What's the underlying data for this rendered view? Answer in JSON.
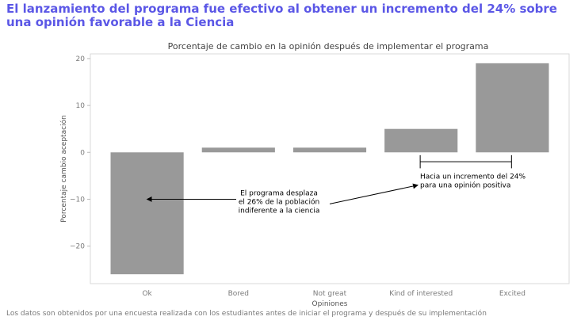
{
  "headline_line1": "El lanzamiento del programa fue efectivo al obtener un incremento del 24% sobre",
  "headline_line2": "una opinión favorable a la Ciencia",
  "footer": "Los datos son obtenidos por una encuesta realizada con los estudiantes antes de iniciar el programa y después de su implementación",
  "colors": {
    "headline": "#5b57e6",
    "bar": "#999999",
    "axis": "#d9d9d9"
  },
  "chart_data": {
    "type": "bar",
    "title": "Porcentaje de cambio en la opinión después de implementar el programa",
    "xlabel": "Opiniones",
    "ylabel": "Porcentaje cambio aceptación",
    "categories": [
      "Ok",
      "Bored",
      "Not great",
      "Kind of interested",
      "Excited"
    ],
    "values": [
      -26,
      1,
      1,
      5,
      19
    ],
    "ylim": [
      -28,
      21
    ],
    "yticks": [
      20,
      10,
      0,
      -10,
      -20
    ],
    "ytick_labels": [
      "20",
      "10",
      "0",
      "−10",
      "−20"
    ],
    "grid": false,
    "annotations": [
      {
        "lines": [
          "El programa desplaza",
          "el 26% de la población",
          "indiferente a la ciencia"
        ]
      },
      {
        "lines": [
          "Hacia un incremento del 24%",
          "para una opinión positiva"
        ]
      }
    ]
  }
}
